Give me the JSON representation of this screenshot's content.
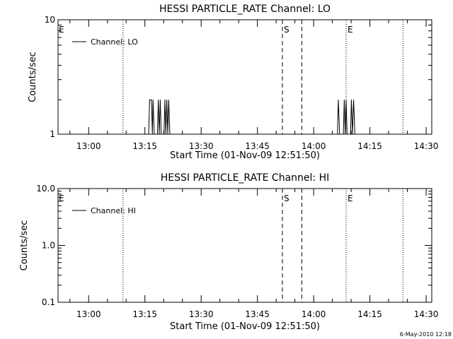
{
  "colors": {
    "background": "#ffffff",
    "foreground": "#000000"
  },
  "footer": {
    "timestamp": "6-May-2010 12:18"
  },
  "chart_data": [
    {
      "type": "line",
      "title": "HESSI PARTICLE_RATE Channel: LO",
      "xlabel": "Start Time (01-Nov-09 12:51:50)",
      "ylabel": "Counts/sec",
      "yscale": "log",
      "ylim": [
        1,
        10
      ],
      "ytick_labels": [
        "1",
        "10"
      ],
      "xlim": [
        "12:51:50",
        "14:31:30"
      ],
      "xtick_labels": [
        "13:00",
        "13:15",
        "13:30",
        "13:45",
        "14:00",
        "14:15",
        "14:30"
      ],
      "legend": {
        "location": "top-left",
        "entries": [
          "Channel: LO"
        ]
      },
      "vlines": [
        {
          "time": "13:09:10",
          "style": "dotted",
          "label": ""
        },
        {
          "time": "13:51:40",
          "style": "dashed",
          "label": "S"
        },
        {
          "time": "13:56:50",
          "style": "dashed",
          "label": ""
        },
        {
          "time": "14:08:40",
          "style": "dotted",
          "label": "E"
        },
        {
          "time": "14:23:50",
          "style": "dotted",
          "label": ""
        }
      ],
      "edge_label_left": "E",
      "series": [
        {
          "name": "Channel: LO",
          "points": [
            [
              "13:16:00",
              1
            ],
            [
              "13:16:15",
              2
            ],
            [
              "13:16:45",
              2
            ],
            [
              "13:17:00",
              1
            ],
            [
              "13:17:10",
              2
            ],
            [
              "13:17:30",
              1
            ],
            [
              "13:18:20",
              1
            ],
            [
              "13:18:35",
              2
            ],
            [
              "13:18:50",
              1
            ],
            [
              "13:19:05",
              2
            ],
            [
              "13:19:20",
              1
            ],
            [
              "13:20:05",
              1
            ],
            [
              "13:20:20",
              2
            ],
            [
              "13:20:35",
              1
            ],
            [
              "13:20:50",
              2
            ],
            [
              "13:21:05",
              1
            ],
            [
              "13:21:20",
              2
            ],
            [
              "13:21:40",
              1
            ],
            [
              "14:06:20",
              1
            ],
            [
              "14:06:35",
              2
            ],
            [
              "14:06:55",
              1
            ],
            [
              "14:07:55",
              1
            ],
            [
              "14:08:10",
              2
            ],
            [
              "14:08:25",
              1
            ],
            [
              "14:08:40",
              2
            ],
            [
              "14:08:55",
              1
            ],
            [
              "14:09:50",
              1
            ],
            [
              "14:10:05",
              2
            ],
            [
              "14:10:20",
              1
            ],
            [
              "14:10:40",
              2
            ],
            [
              "14:11:00",
              1
            ]
          ]
        }
      ]
    },
    {
      "type": "line",
      "title": "HESSI PARTICLE_RATE Channel: HI",
      "xlabel": "Start Time (01-Nov-09 12:51:50)",
      "ylabel": "Counts/sec",
      "yscale": "log",
      "ylim": [
        0.1,
        10
      ],
      "ytick_labels": [
        "0.1",
        "1.0",
        "10.0"
      ],
      "xlim": [
        "12:51:50",
        "14:31:30"
      ],
      "xtick_labels": [
        "13:00",
        "13:15",
        "13:30",
        "13:45",
        "14:00",
        "14:15",
        "14:30"
      ],
      "legend": {
        "location": "top-left",
        "entries": [
          "Channel: HI"
        ]
      },
      "vlines": [
        {
          "time": "13:09:10",
          "style": "dotted",
          "label": ""
        },
        {
          "time": "13:51:40",
          "style": "dashed",
          "label": "S"
        },
        {
          "time": "13:56:50",
          "style": "dashed",
          "label": ""
        },
        {
          "time": "14:08:40",
          "style": "dotted",
          "label": "E"
        },
        {
          "time": "14:23:50",
          "style": "dotted",
          "label": ""
        }
      ],
      "edge_label_left": "E",
      "series": [
        {
          "name": "Channel: HI",
          "points": []
        }
      ]
    }
  ]
}
